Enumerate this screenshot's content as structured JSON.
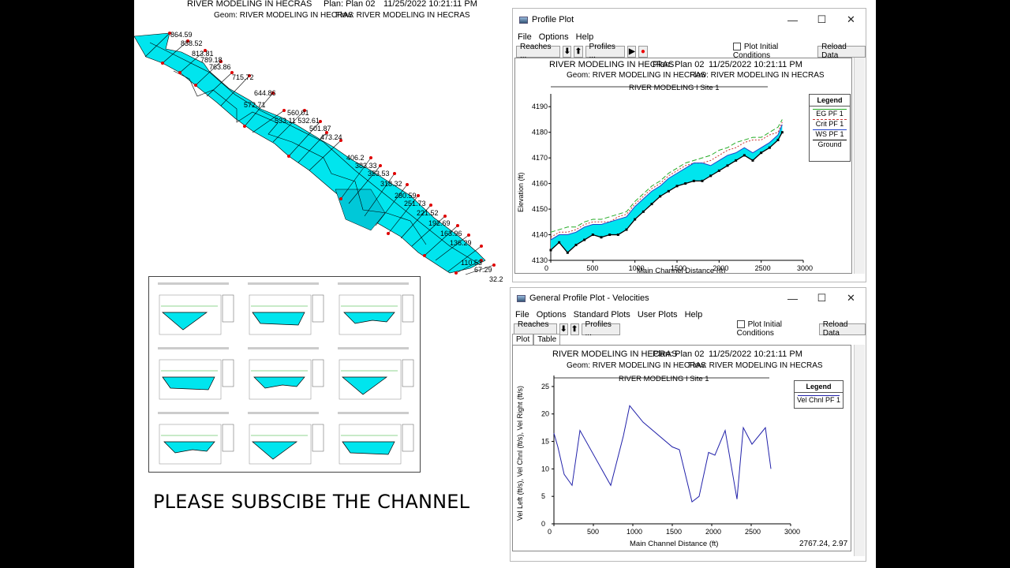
{
  "left_view": {
    "header": {
      "title": "RIVER MODELING IN HECRAS",
      "plan": "Plan: Plan 02",
      "datetime": "11/25/2022   10:21:11 PM",
      "geom": "Geom: RIVER MODELING IN HECRAS",
      "flow": "Flow: RIVER MODELING IN HECRAS"
    },
    "station_labels": [
      "864.59",
      "838.52",
      "813.81",
      "789.18",
      "763.86",
      "715.72",
      "644.86",
      "572.71",
      "560.01",
      "533.11 532.61",
      "501.87",
      "473.24",
      "406.2",
      "383.33",
      "353.53",
      "318.32",
      "280.59",
      "251.73",
      "221.52",
      "192.69",
      "163.96",
      "136.29",
      "110.53",
      "67.29",
      "32.2"
    ],
    "colors": {
      "water": "#00e5ee",
      "bank": "#ff0000",
      "line": "#000000"
    }
  },
  "subscribe_text": "PLEASE SUBSCIBE THE CHANNEL",
  "profile_window": {
    "title": "Profile Plot",
    "menu": [
      "File",
      "Options",
      "Help"
    ],
    "toolbar": {
      "reaches": "Reaches ...",
      "profiles": "Profiles ...",
      "plot_initial": "Plot Initial Conditions",
      "reload": "Reload Data"
    },
    "plot_title": "RIVER MODELING IN HECRAS",
    "plan": "Plan: Plan 02",
    "datetime": "11/25/2022  10:21:11 PM",
    "geom": "Geom: RIVER MODELING IN HECRAS",
    "flow": "Flow: RIVER MODELING IN HECRAS",
    "reach_label": "RIVER MODELING I Site 1",
    "legend": {
      "title": "Legend",
      "items": [
        "EG  PF 1",
        "Crit  PF 1",
        "WS  PF 1",
        "Ground"
      ]
    }
  },
  "velocity_window": {
    "title": "General Profile Plot - Velocities",
    "menu": [
      "File",
      "Options",
      "Standard Plots",
      "User Plots",
      "Help"
    ],
    "toolbar": {
      "reaches": "Reaches ...",
      "profiles": "Profiles ...",
      "plot_initial": "Plot Initial Conditions",
      "reload": "Reload Data"
    },
    "tabs": [
      "Plot",
      "Table"
    ],
    "plot_title": "RIVER MODELING IN HECRAS",
    "plan": "Plan: Plan 02",
    "datetime": "11/25/2022   10:21:11 PM",
    "geom": "Geom: RIVER MODELING IN HECRAS",
    "flow": "Flow: RIVER MODELING IN HECRAS",
    "reach_label": "RIVER MODELING I Site 1",
    "legend": {
      "title": "Legend",
      "items": [
        "Vel Chnl PF 1"
      ]
    },
    "cursor_readout": "2767.24, 2.97"
  },
  "chart_data": [
    {
      "type": "line",
      "title": "RIVER MODELING IN HECRAS",
      "xlabel": "Main Channel Distance (ft)",
      "ylabel": "Elevation (ft)",
      "xlim": [
        0,
        3000
      ],
      "ylim": [
        4130,
        4195
      ],
      "xticks": [
        0,
        500,
        1000,
        1500,
        2000,
        2500,
        3000
      ],
      "yticks": [
        4130,
        4140,
        4150,
        4160,
        4170,
        4180,
        4190
      ],
      "x": [
        0,
        100,
        200,
        300,
        400,
        500,
        600,
        700,
        800,
        900,
        1000,
        1100,
        1200,
        1300,
        1400,
        1500,
        1600,
        1700,
        1800,
        1900,
        2000,
        2100,
        2200,
        2300,
        2400,
        2500,
        2600,
        2700,
        2750
      ],
      "series": [
        {
          "name": "EG  PF 1",
          "values": [
            4141,
            4142,
            4143,
            4143,
            4145,
            4146,
            4146,
            4147,
            4148,
            4149,
            4153,
            4156,
            4159,
            4161,
            4164,
            4166,
            4168,
            4169,
            4170,
            4171,
            4173,
            4174,
            4176,
            4177,
            4178,
            4178,
            4180,
            4182,
            4185
          ]
        },
        {
          "name": "Crit  PF 1",
          "values": [
            4139,
            4141,
            4141,
            4142,
            4144,
            4145,
            4145,
            4145,
            4147,
            4148,
            4152,
            4155,
            4158,
            4160,
            4163,
            4165,
            4167,
            4168,
            4168,
            4169,
            4171,
            4173,
            4174,
            4176,
            4177,
            4177,
            4179,
            4180,
            4184
          ]
        },
        {
          "name": "WS  PF 1",
          "values": [
            4138,
            4140,
            4140,
            4141,
            4143,
            4144,
            4144,
            4145,
            4146,
            4147,
            4151,
            4154,
            4157,
            4159,
            4162,
            4164,
            4166,
            4168,
            4168,
            4167,
            4169,
            4171,
            4172,
            4174,
            4172,
            4174,
            4176,
            4179,
            4183
          ]
        },
        {
          "name": "Ground",
          "values": [
            4134,
            4137,
            4133,
            4136,
            4138,
            4140,
            4139,
            4140,
            4140,
            4142,
            4146,
            4149,
            4152,
            4155,
            4157,
            4159,
            4160,
            4161,
            4161,
            4163,
            4165,
            4167,
            4169,
            4171,
            4169,
            4172,
            4174,
            4177,
            4180
          ]
        }
      ],
      "legend_position": "right"
    },
    {
      "type": "line",
      "title": "RIVER MODELING IN HECRAS",
      "xlabel": "Main Channel Distance (ft)",
      "ylabel": "Vel Left (ft/s), Vel Chnl (ft/s), Vel Right (ft/s)",
      "xlim": [
        0,
        3000
      ],
      "ylim": [
        0,
        27
      ],
      "xticks": [
        0,
        500,
        1000,
        1500,
        2000,
        2500,
        3000
      ],
      "yticks": [
        0,
        5,
        10,
        15,
        20,
        25
      ],
      "series": [
        {
          "name": "Vel Chnl PF 1",
          "x": [
            0,
            50,
            130,
            230,
            330,
            720,
            880,
            960,
            1130,
            1500,
            1590,
            1750,
            1840,
            1960,
            2040,
            2170,
            2320,
            2400,
            2510,
            2680,
            2750
          ],
          "values": [
            16.5,
            14,
            9,
            7,
            17,
            7,
            16,
            21.5,
            18.5,
            14,
            13.5,
            4,
            5,
            13,
            12.5,
            17,
            4.5,
            17.5,
            14.5,
            17.5,
            10
          ]
        }
      ],
      "legend_position": "right"
    }
  ]
}
